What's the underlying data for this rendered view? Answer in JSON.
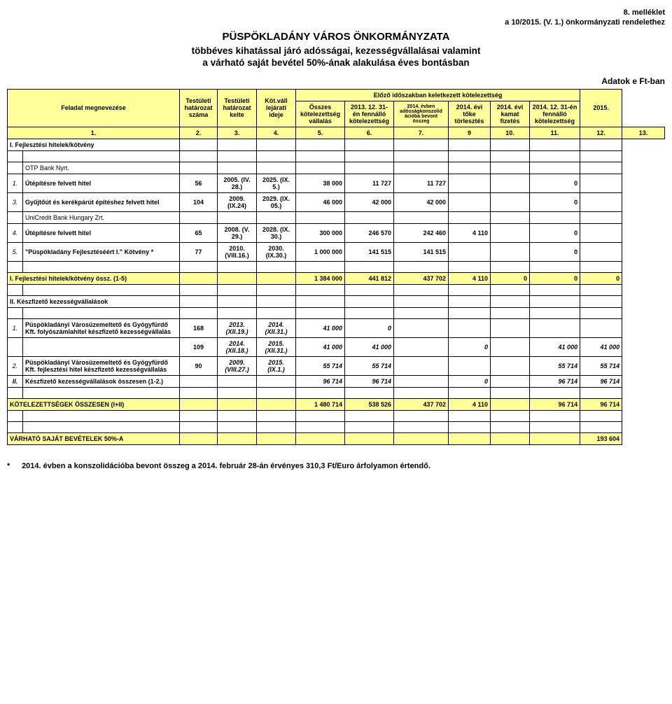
{
  "header": {
    "attachment": "8. melléklet",
    "regulation": "a 10/2015. (V. 1.) önkormányzati rendelethez",
    "title": "PÜSPÖKLADÁNY VÁROS ÖNKORMÁNYZATA",
    "subtitle1": "többéves kihatással járó adósságai, kezességvállalásai valamint",
    "subtitle2": "a várható saját bevétel 50%-ának alakulása éves bontásban",
    "units": "Adatok e Ft-ban"
  },
  "columns": {
    "task": "Feladat megnevezése",
    "res_num": "Testületi határozat száma",
    "res_date": "Testületi határozat kelte",
    "maturity": "Köt.váll lejárati ideje",
    "prev_period_header": "Előző időszakban keletkezett kötelezettség",
    "total_obl": "Összes kötelezettség vállalás",
    "open_2013": "2013. 12. 31-én fennálló kötelezettség",
    "consol_2014": "2014. évben adósságkonszolid ációba bevont összeg",
    "principal_2014": "2014. évi tőke törlesztés",
    "interest_2014": "2014. évi kamat fizetés",
    "open_2014": "2014. 12. 31-én fennálló kötelezettség",
    "year_2015": "2015.",
    "col_nums": [
      "1.",
      "2.",
      "3.",
      "4.",
      "5.",
      "6.",
      "7.",
      "9",
      "10.",
      "11.",
      "12.",
      "13."
    ]
  },
  "section1": {
    "title": "I.   Fejlesztési hitelek/kötvény",
    "bank1": "OTP Bank Nyrt.",
    "bank2": "UniCredit Bank Hungary Zrt.",
    "rows": [
      {
        "num": "1.",
        "name": "Útépítésre felvett hitel",
        "res_num": "56",
        "res_date": "2005. (IV. 28.)",
        "maturity": "2025. (IX. 5.)",
        "total": "38 000",
        "open_2013": "11 727",
        "consol_2014": "11 727",
        "principal_2014": "",
        "interest_2014": "",
        "open_2014": "0",
        "y2015": ""
      },
      {
        "num": "3.",
        "name": "Gyűjtőút és kerékpárút építéshez felvett hitel",
        "res_num": "104",
        "res_date": "2009. (IX.24)",
        "maturity": "2029. (IX. 05.)",
        "total": "46 000",
        "open_2013": "42 000",
        "consol_2014": "42 000",
        "principal_2014": "",
        "interest_2014": "",
        "open_2014": "0",
        "y2015": ""
      },
      {
        "num": "4.",
        "name": "Útépítésre felvett hitel",
        "res_num": "65",
        "res_date": "2008. (V. 29.)",
        "maturity": "2028. (IX. 30.)",
        "total": "300 000",
        "open_2013": "246 570",
        "consol_2014": "242 460",
        "principal_2014": "4 110",
        "interest_2014": "",
        "open_2014": "0",
        "y2015": ""
      },
      {
        "num": "5.",
        "name": "\"Püspökladány Fejlesztéséért I.\" Kötvény *",
        "res_num": "77",
        "res_date": "2010. (VIII.16.)",
        "maturity": "2030. (IX.30.)",
        "total": "1 000 000",
        "open_2013": "141 515",
        "consol_2014": "141 515",
        "principal_2014": "",
        "interest_2014": "",
        "open_2014": "0",
        "y2015": ""
      }
    ],
    "subtotal": {
      "label": "I. Fejlesztési hitelek/kötvény össz. (1-5)",
      "total": "1 384 000",
      "open_2013": "441 812",
      "consol_2014": "437 702",
      "principal_2014": "4 110",
      "interest_2014": "0",
      "open_2014": "0",
      "y2015": "0"
    }
  },
  "section2": {
    "title": "II. Készfizető kezességvállalások",
    "rows": [
      {
        "num": "1.",
        "name": "Püspökladányi Városüzemeltető és Gyógyfürdő Kft. folyószámlahitel készfizető kezességvállalás",
        "res_num": "168",
        "res_date": "2013. (XII.19.)",
        "maturity": "2014. (XII.31.)",
        "total": "41 000",
        "open_2013": "0",
        "consol_2014": "",
        "principal_2014": "",
        "interest_2014": "",
        "open_2014": "",
        "y2015": ""
      },
      {
        "num": "",
        "name": "",
        "res_num": "109",
        "res_date": "2014. (XII.18.)",
        "maturity": "2015. (XII.31.)",
        "total": "41 000",
        "open_2013": "41 000",
        "consol_2014": "",
        "principal_2014": "0",
        "interest_2014": "",
        "open_2014": "41 000",
        "y2015": "41 000"
      },
      {
        "num": "2.",
        "name": "Püspökladányi Városüzemeltető és Gyógyfürdő Kft. fejlesztési hitel készfizető kezességvállalás",
        "res_num": "90",
        "res_date": "2009. (VIII.27.)",
        "maturity": "2015. (IX.1.)",
        "total": "55 714",
        "open_2013": "55 714",
        "consol_2014": "",
        "principal_2014": "",
        "interest_2014": "",
        "open_2014": "55 714",
        "y2015": "55 714"
      }
    ],
    "subtotal": {
      "num": "II.",
      "label": "Készfizető kezességvállalások összesen (1-2.)",
      "total": "96 714",
      "open_2013": "96 714",
      "consol_2014": "",
      "principal_2014": "0",
      "interest_2014": "",
      "open_2014": "96 714",
      "y2015": "96 714"
    }
  },
  "grand_total": {
    "label": "KÖTELEZETTSÉGEK ÖSSZESEN (I+II)",
    "total": "1 480 714",
    "open_2013": "538 526",
    "consol_2014": "437 702",
    "principal_2014": "4 110",
    "interest_2014": "",
    "open_2014": "96 714",
    "y2015": "96 714"
  },
  "expected_rev": {
    "label": "VÁRHATÓ SAJÁT BEVÉTELEK 50%-A",
    "y2015": "193 604"
  },
  "footnote": {
    "star": "*",
    "text": "2014. évben a konszolidációba bevont összeg a 2014. február 28-án érvényes 310,3 Ft/Euro árfolyamon értendő."
  },
  "colors": {
    "header_bg": "#ffff99",
    "border": "#000000",
    "text": "#000000",
    "page_bg": "#ffffff"
  },
  "typography": {
    "base_fontsize_pt": 8,
    "title_fontsize_pt": 12,
    "subtitle_fontsize_pt": 11
  }
}
